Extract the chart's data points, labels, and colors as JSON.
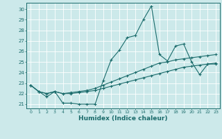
{
  "xlabel": "Humidex (Indice chaleur)",
  "bg_color": "#cce9ea",
  "grid_color": "#ffffff",
  "line_color": "#1a6b6b",
  "xlim": [
    -0.5,
    23.5
  ],
  "ylim": [
    20.6,
    30.6
  ],
  "xticks": [
    0,
    1,
    2,
    3,
    4,
    5,
    6,
    7,
    8,
    9,
    10,
    11,
    12,
    13,
    14,
    15,
    16,
    17,
    18,
    19,
    20,
    21,
    22,
    23
  ],
  "yticks": [
    21,
    22,
    23,
    24,
    25,
    26,
    27,
    28,
    29,
    30
  ],
  "series": [
    [
      22.8,
      22.2,
      21.7,
      22.2,
      21.1,
      21.1,
      21.0,
      21.0,
      21.0,
      23.2,
      25.2,
      26.1,
      27.3,
      27.5,
      29.0,
      30.3,
      25.7,
      25.1,
      26.5,
      26.7,
      25.0,
      23.8,
      24.8,
      24.8
    ],
    [
      22.8,
      22.2,
      22.0,
      22.2,
      22.0,
      22.1,
      22.2,
      22.3,
      22.5,
      22.8,
      23.1,
      23.4,
      23.7,
      24.0,
      24.3,
      24.6,
      24.9,
      25.0,
      25.2,
      25.3,
      25.4,
      25.5,
      25.6,
      25.7
    ],
    [
      22.8,
      22.2,
      22.0,
      22.2,
      22.0,
      22.0,
      22.1,
      22.2,
      22.3,
      22.5,
      22.7,
      22.9,
      23.1,
      23.3,
      23.5,
      23.7,
      23.9,
      24.1,
      24.3,
      24.5,
      24.6,
      24.7,
      24.8,
      24.9
    ]
  ]
}
